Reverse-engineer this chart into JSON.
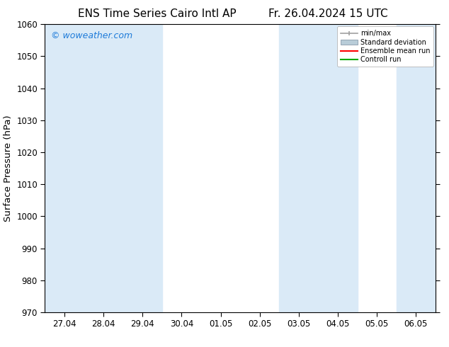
{
  "title_left": "ENS Time Series Cairo Intl AP",
  "title_right": "Fr. 26.04.2024 15 UTC",
  "ylabel": "Surface Pressure (hPa)",
  "ylim": [
    970,
    1060
  ],
  "yticks": [
    970,
    980,
    990,
    1000,
    1010,
    1020,
    1030,
    1040,
    1050,
    1060
  ],
  "xtick_labels": [
    "27.04",
    "28.04",
    "29.04",
    "30.04",
    "01.05",
    "02.05",
    "03.05",
    "04.05",
    "05.05",
    "06.05"
  ],
  "watermark": "© woweather.com",
  "watermark_color": "#1e7bd9",
  "background_color": "#ffffff",
  "shaded_band_color": "#daeaf7",
  "shaded_columns": [
    0,
    1,
    2,
    6,
    7,
    9
  ],
  "legend_labels": [
    "min/max",
    "Standard deviation",
    "Ensemble mean run",
    "Controll run"
  ],
  "legend_colors_line": [
    "#a0a0a0",
    "#b8ccd8",
    "#ff0000",
    "#00aa00"
  ],
  "title_fontsize": 11,
  "tick_fontsize": 8.5,
  "ylabel_fontsize": 9.5,
  "watermark_fontsize": 9
}
